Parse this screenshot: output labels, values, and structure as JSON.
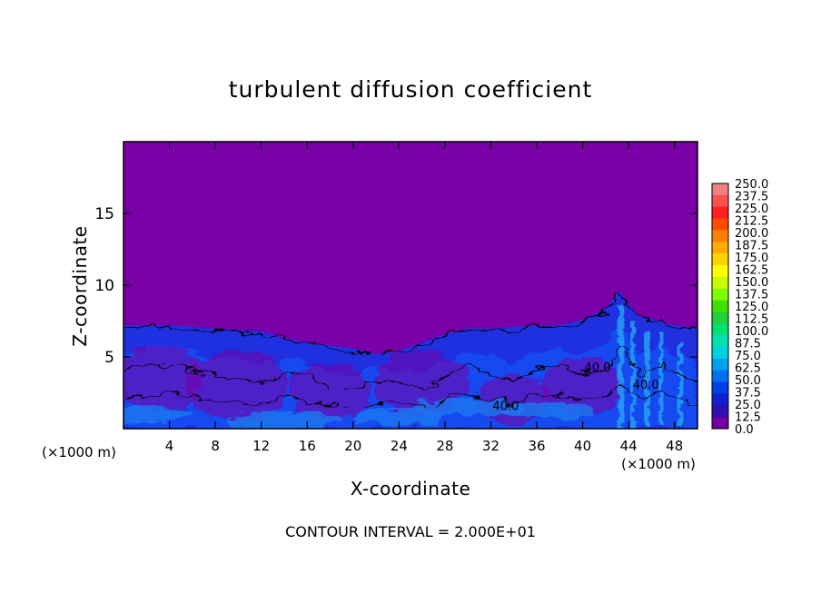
{
  "chart_data": {
    "type": "heatmap",
    "title": "turbulent diffusion coefficient",
    "xlabel": "X-coordinate",
    "ylabel": "Z-coordinate",
    "x_unit": "(×1000 m)",
    "xlim": [
      0,
      50
    ],
    "ylim": [
      0,
      20
    ],
    "x_ticks": [
      4,
      8,
      12,
      16,
      20,
      24,
      28,
      32,
      36,
      40,
      44,
      48
    ],
    "y_ticks": [
      5,
      10,
      15
    ],
    "footer": "CONTOUR INTERVAL = 2.000E+01",
    "contour_labels": [
      {
        "x": 33.3,
        "z": 1.3,
        "text": "40.0"
      },
      {
        "x": 41.3,
        "z": 4.0,
        "text": "40.0"
      },
      {
        "x": 45.5,
        "z": 2.8,
        "text": "40.0"
      }
    ],
    "turbulent_layer_top": [
      {
        "x": 0,
        "z": 7.2
      },
      {
        "x": 4,
        "z": 7.2
      },
      {
        "x": 8,
        "z": 7.0
      },
      {
        "x": 12,
        "z": 6.8
      },
      {
        "x": 14,
        "z": 6.3
      },
      {
        "x": 16,
        "z": 6.0
      },
      {
        "x": 18,
        "z": 5.8
      },
      {
        "x": 20,
        "z": 5.6
      },
      {
        "x": 22,
        "z": 5.2
      },
      {
        "x": 24,
        "z": 5.4
      },
      {
        "x": 26,
        "z": 6.0
      },
      {
        "x": 28,
        "z": 6.6
      },
      {
        "x": 30,
        "z": 7.0
      },
      {
        "x": 32,
        "z": 7.0
      },
      {
        "x": 34,
        "z": 7.1
      },
      {
        "x": 36,
        "z": 7.2
      },
      {
        "x": 38,
        "z": 7.2
      },
      {
        "x": 40,
        "z": 7.6
      },
      {
        "x": 42,
        "z": 8.4
      },
      {
        "x": 43.2,
        "z": 9.6
      },
      {
        "x": 44,
        "z": 8.7
      },
      {
        "x": 45,
        "z": 7.8
      },
      {
        "x": 46,
        "z": 7.7
      },
      {
        "x": 47,
        "z": 7.4
      },
      {
        "x": 48,
        "z": 7.2
      },
      {
        "x": 50,
        "z": 7.0
      }
    ],
    "colorbar": {
      "labels": [
        "250.0",
        "237.5",
        "225.0",
        "212.5",
        "200.0",
        "187.5",
        "175.0",
        "162.5",
        "150.0",
        "137.5",
        "125.0",
        "112.5",
        "100.0",
        "87.5",
        "75.0",
        "62.5",
        "50.0",
        "37.5",
        "25.0",
        "12.5",
        "0.0"
      ],
      "colors": [
        "#f08080",
        "#ff5050",
        "#ff2020",
        "#ff4a00",
        "#ff8000",
        "#ffaa00",
        "#ffd400",
        "#ffff00",
        "#c8ff00",
        "#80ff00",
        "#40e000",
        "#20d040",
        "#00e070",
        "#00e0b0",
        "#00d0e0",
        "#00a0f0",
        "#0070f0",
        "#0040e8",
        "#1020d0",
        "#3010b0",
        "#7000a0"
      ]
    },
    "colors": {
      "background": "#7a00a8",
      "layer_base": "#1e30e0",
      "layer_mid": "#1848f0",
      "layer_strong": "#1a78f0",
      "layer_cyan": "#24a0f4",
      "contour_line": "#000000"
    }
  }
}
